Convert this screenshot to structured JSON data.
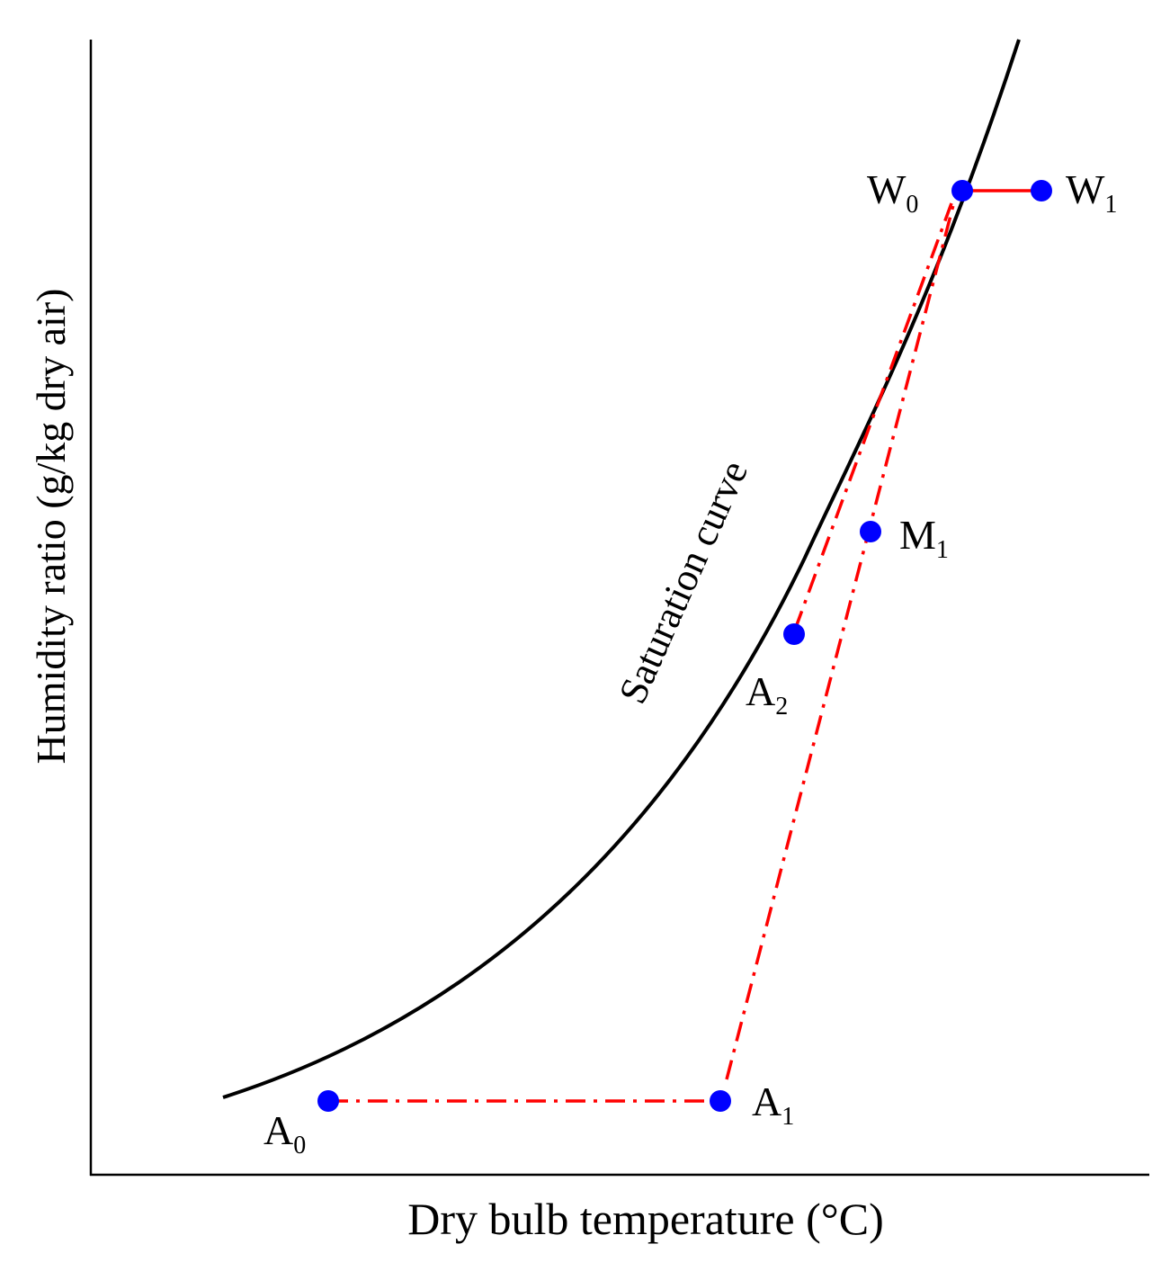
{
  "chart_data": {
    "type": "diagram",
    "xlabel": "Dry bulb temperature (°C)",
    "ylabel": "Humidity ratio (g/kg dry air)",
    "curve_label": "Saturation curve",
    "points": [
      {
        "id": "A0",
        "base": "A",
        "sub": "0"
      },
      {
        "id": "A1",
        "base": "A",
        "sub": "1"
      },
      {
        "id": "A2",
        "base": "A",
        "sub": "2"
      },
      {
        "id": "M1",
        "base": "M",
        "sub": "1"
      },
      {
        "id": "W0",
        "base": "W",
        "sub": "0"
      },
      {
        "id": "W1",
        "base": "W",
        "sub": "1"
      }
    ],
    "connections": [
      {
        "from": "A0",
        "to": "A1",
        "style": "dash-dot"
      },
      {
        "from": "A1",
        "to": "W0",
        "style": "dash-dot"
      },
      {
        "from": "A2",
        "to": "W0",
        "style": "dash-dot"
      },
      {
        "from": "W0",
        "to": "W1",
        "style": "solid"
      }
    ]
  },
  "colors": {
    "point": "#0000ff",
    "process_line": "#ff0000",
    "curve": "#000000",
    "axis": "#000000"
  }
}
